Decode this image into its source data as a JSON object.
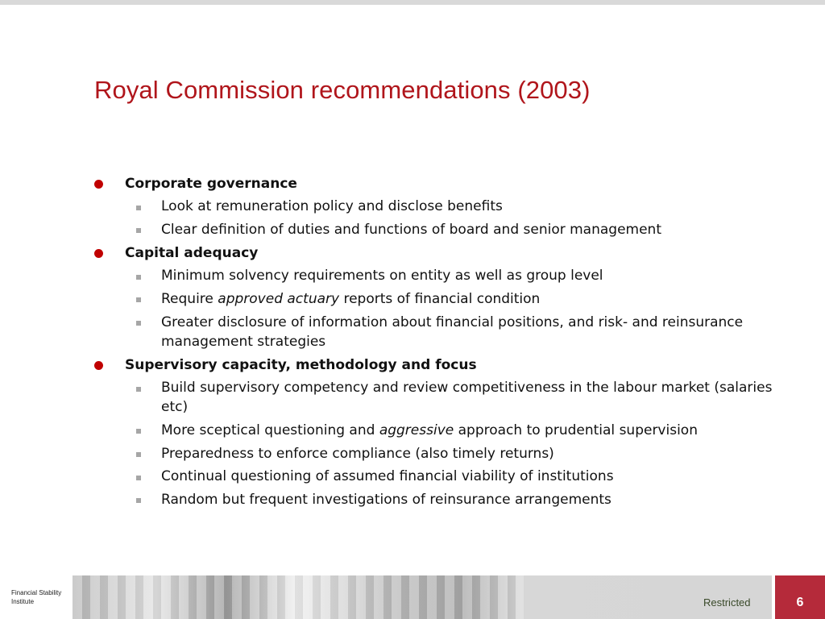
{
  "slide": {
    "title": "Royal Commission recommendations (2003)",
    "bullets": [
      {
        "heading": "Corporate governance",
        "subs": [
          {
            "segments": [
              {
                "text": "Look at remuneration policy and disclose benefits",
                "italic": false
              }
            ]
          },
          {
            "segments": [
              {
                "text": "Clear definition of duties and functions of board and senior management",
                "italic": false
              }
            ]
          }
        ]
      },
      {
        "heading": "Capital adequacy",
        "subs": [
          {
            "segments": [
              {
                "text": "Minimum solvency requirements on entity as well as group level",
                "italic": false
              }
            ]
          },
          {
            "segments": [
              {
                "text": "Require ",
                "italic": false
              },
              {
                "text": "approved actuary",
                "italic": true
              },
              {
                "text": " reports of financial condition",
                "italic": false
              }
            ]
          },
          {
            "segments": [
              {
                "text": "Greater disclosure of information about financial positions, and risk- and reinsurance management strategies",
                "italic": false
              }
            ]
          }
        ]
      },
      {
        "heading": "Supervisory capacity, methodology and focus",
        "subs": [
          {
            "segments": [
              {
                "text": "Build supervisory competency and review competitiveness in the labour market (salaries etc)",
                "italic": false
              }
            ]
          },
          {
            "segments": [
              {
                "text": "More sceptical questioning and ",
                "italic": false
              },
              {
                "text": "aggressive",
                "italic": true
              },
              {
                "text": " approach to prudential supervision",
                "italic": false
              }
            ]
          },
          {
            "segments": [
              {
                "text": "Preparedness to enforce compliance (also timely returns)",
                "italic": false
              }
            ]
          },
          {
            "segments": [
              {
                "text": "Continual questioning of assumed financial viability of institutions",
                "italic": false
              }
            ]
          },
          {
            "segments": [
              {
                "text": "Random but frequent investigations of reinsurance arrangements",
                "italic": false
              }
            ]
          }
        ]
      }
    ]
  },
  "footer": {
    "logo_text": [
      "Financial Stability",
      "Institute"
    ],
    "classification": "Restricted",
    "page_number": "6"
  },
  "colors": {
    "title": "#b0151b",
    "bullet": "#c00000",
    "page_box": "#b52a3a"
  }
}
